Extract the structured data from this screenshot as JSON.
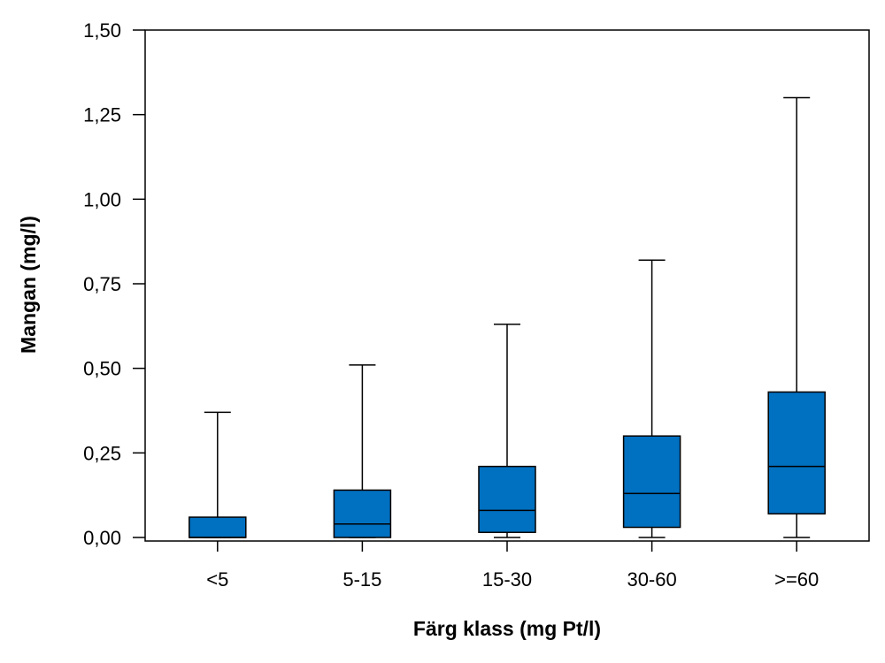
{
  "chart_data": {
    "type": "box",
    "xlabel": "Färg klass (mg Pt/l)",
    "ylabel": "Mangan (mg/l)",
    "ylim": [
      0,
      1.5
    ],
    "yticks": [
      0,
      0.25,
      0.5,
      0.75,
      1.0,
      1.25,
      1.5
    ],
    "ytick_labels": [
      "0,00",
      "0,25",
      "0,50",
      "0,75",
      "1,00",
      "1,25",
      "1,50"
    ],
    "categories": [
      "<5",
      "5-15",
      "15-30",
      "30-60",
      ">=60"
    ],
    "boxes": [
      {
        "category": "<5",
        "whisker_low": 0.0,
        "q1": 0.0,
        "median": 0.0,
        "q3": 0.06,
        "whisker_high": 0.37
      },
      {
        "category": "5-15",
        "whisker_low": 0.0,
        "q1": 0.0,
        "median": 0.04,
        "q3": 0.14,
        "whisker_high": 0.51
      },
      {
        "category": "15-30",
        "whisker_low": 0.0,
        "q1": 0.015,
        "median": 0.08,
        "q3": 0.21,
        "whisker_high": 0.63
      },
      {
        "category": "30-60",
        "whisker_low": 0.0,
        "q1": 0.03,
        "median": 0.13,
        "q3": 0.3,
        "whisker_high": 0.82
      },
      {
        "category": ">=60",
        "whisker_low": 0.0,
        "q1": 0.07,
        "median": 0.21,
        "q3": 0.43,
        "whisker_high": 1.3
      }
    ],
    "box_color": "#0070C0",
    "grid": false,
    "legend": "none"
  }
}
